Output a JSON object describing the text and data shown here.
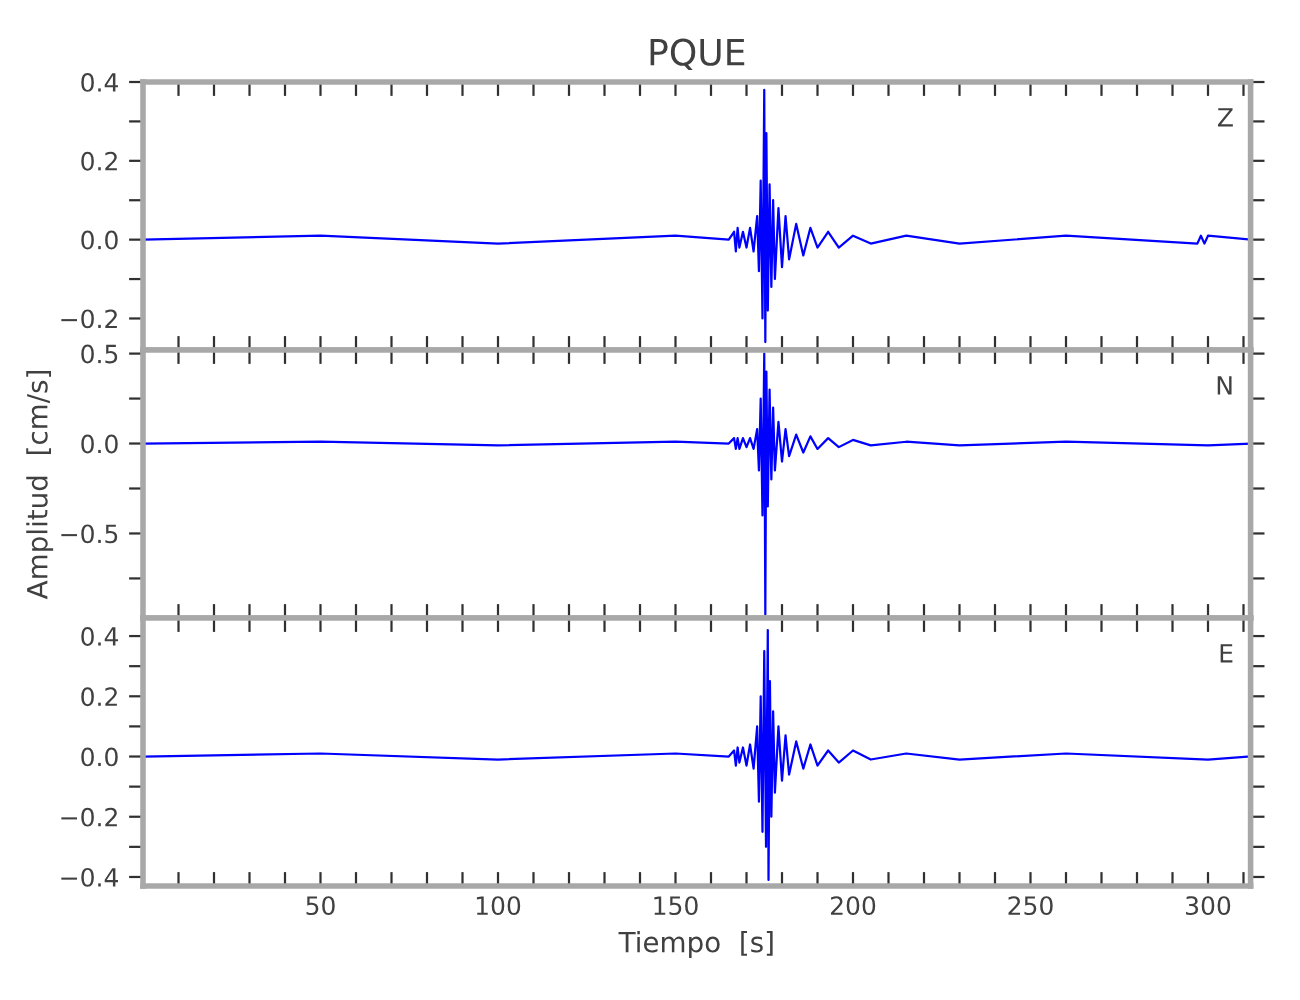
{
  "chart_data": [
    {
      "type": "line",
      "title": "PQUE",
      "annotations": [
        "Z"
      ],
      "tick_labels": "y",
      "xlim": [
        0,
        312
      ],
      "ylim": [
        -0.28,
        0.4
      ],
      "xticks": [
        {
          "value": 10,
          "label": null
        },
        {
          "value": 20,
          "label": null
        },
        {
          "value": 30,
          "label": null
        },
        {
          "value": 40,
          "label": null
        },
        50,
        {
          "value": 60,
          "label": null
        },
        {
          "value": 70,
          "label": null
        },
        {
          "value": 80,
          "label": null
        },
        {
          "value": 90,
          "label": null
        },
        100,
        {
          "value": 110,
          "label": null
        },
        {
          "value": 120,
          "label": null
        },
        {
          "value": 130,
          "label": null
        },
        {
          "value": 140,
          "label": null
        },
        150,
        {
          "value": 160,
          "label": null
        },
        {
          "value": 170,
          "label": null
        },
        {
          "value": 180,
          "label": null
        },
        {
          "value": 190,
          "label": null
        },
        200,
        {
          "value": 210,
          "label": null
        },
        {
          "value": 220,
          "label": null
        },
        {
          "value": 230,
          "label": null
        },
        {
          "value": 240,
          "label": null
        },
        250,
        {
          "value": 260,
          "label": null
        },
        {
          "value": 270,
          "label": null
        },
        {
          "value": 280,
          "label": null
        },
        {
          "value": 290,
          "label": null
        },
        300,
        {
          "value": 310,
          "label": null
        }
      ],
      "yticks": [
        {
          "value": -0.2,
          "label": "−0.2"
        },
        {
          "value": -0.1,
          "label": null
        },
        {
          "value": 0.0,
          "label": "0.0"
        },
        {
          "value": 0.1,
          "label": null
        },
        {
          "value": 0.2,
          "label": "0.2"
        },
        {
          "value": 0.3,
          "label": null
        },
        {
          "value": 0.4,
          "label": "0.4"
        }
      ],
      "series": [
        {
          "color": "#0000ff",
          "x": [
            0,
            50,
            100,
            150,
            165,
            166.5,
            167,
            167.5,
            168,
            169,
            170,
            171,
            172,
            173,
            173.5,
            174,
            174.5,
            175,
            175.3,
            175.6,
            176,
            176.5,
            177,
            177.5,
            178,
            179,
            180,
            181,
            182,
            184,
            186,
            188,
            190,
            193,
            196,
            200,
            205,
            215,
            230,
            260,
            297,
            298,
            299,
            300,
            312
          ],
          "values": [
            0,
            0.01,
            -0.01,
            0.01,
            0,
            0.02,
            -0.03,
            0.03,
            -0.02,
            0.02,
            -0.02,
            0.03,
            -0.03,
            0.06,
            -0.08,
            0.15,
            -0.2,
            0.38,
            -0.26,
            0.27,
            -0.18,
            0.14,
            -0.12,
            0.1,
            -0.1,
            0.08,
            -0.07,
            0.06,
            -0.05,
            0.04,
            -0.04,
            0.03,
            -0.02,
            0.02,
            -0.02,
            0.01,
            -0.01,
            0.01,
            -0.01,
            0.01,
            -0.01,
            0.01,
            -0.01,
            0.01,
            0
          ]
        }
      ]
    },
    {
      "type": "line",
      "ylabel": "Amplitud  [cm/s]",
      "annotations": [
        "N"
      ],
      "tick_labels": "y",
      "xlim": [
        0,
        312
      ],
      "ylim": [
        -0.97,
        0.52
      ],
      "xticks": [
        {
          "value": 10,
          "label": null
        },
        {
          "value": 20,
          "label": null
        },
        {
          "value": 30,
          "label": null
        },
        {
          "value": 40,
          "label": null
        },
        50,
        {
          "value": 60,
          "label": null
        },
        {
          "value": 70,
          "label": null
        },
        {
          "value": 80,
          "label": null
        },
        {
          "value": 90,
          "label": null
        },
        100,
        {
          "value": 110,
          "label": null
        },
        {
          "value": 120,
          "label": null
        },
        {
          "value": 130,
          "label": null
        },
        {
          "value": 140,
          "label": null
        },
        150,
        {
          "value": 160,
          "label": null
        },
        {
          "value": 170,
          "label": null
        },
        {
          "value": 180,
          "label": null
        },
        {
          "value": 190,
          "label": null
        },
        200,
        {
          "value": 210,
          "label": null
        },
        {
          "value": 220,
          "label": null
        },
        {
          "value": 230,
          "label": null
        },
        {
          "value": 240,
          "label": null
        },
        250,
        {
          "value": 260,
          "label": null
        },
        {
          "value": 270,
          "label": null
        },
        {
          "value": 280,
          "label": null
        },
        {
          "value": 290,
          "label": null
        },
        300,
        {
          "value": 310,
          "label": null
        }
      ],
      "yticks": [
        {
          "value": -0.75,
          "label": null
        },
        {
          "value": -0.5,
          "label": "−0.5"
        },
        {
          "value": -0.25,
          "label": null
        },
        {
          "value": 0.0,
          "label": "0.0"
        },
        {
          "value": 0.25,
          "label": null
        },
        {
          "value": 0.5,
          "label": "0.5"
        }
      ],
      "series": [
        {
          "color": "#0000ff",
          "x": [
            0,
            50,
            100,
            150,
            165,
            166.5,
            167,
            167.5,
            168,
            169,
            170,
            171,
            172,
            173,
            173.5,
            174,
            174.5,
            175,
            175.3,
            175.6,
            176,
            176.5,
            177,
            177.5,
            178,
            179,
            180,
            181,
            182,
            184,
            186,
            188,
            190,
            193,
            196,
            200,
            205,
            215,
            230,
            260,
            300,
            312
          ],
          "values": [
            0,
            0.01,
            -0.01,
            0.01,
            0,
            0.03,
            -0.03,
            0.03,
            -0.03,
            0.03,
            -0.02,
            0.03,
            -0.03,
            0.08,
            -0.15,
            0.25,
            -0.4,
            0.5,
            -0.95,
            0.4,
            -0.35,
            0.3,
            -0.2,
            0.2,
            -0.15,
            0.12,
            -0.1,
            0.08,
            -0.07,
            0.05,
            -0.05,
            0.04,
            -0.03,
            0.03,
            -0.02,
            0.02,
            -0.01,
            0.01,
            -0.01,
            0.01,
            -0.01,
            0
          ]
        }
      ]
    },
    {
      "type": "line",
      "xlabel": "Tiempo  [s]",
      "annotations": [
        "E"
      ],
      "xlim": [
        0,
        312
      ],
      "ylim": [
        -0.43,
        0.46
      ],
      "xticks": [
        {
          "value": 10,
          "label": null
        },
        {
          "value": 20,
          "label": null
        },
        {
          "value": 30,
          "label": null
        },
        {
          "value": 40,
          "label": null
        },
        50,
        {
          "value": 60,
          "label": null
        },
        {
          "value": 70,
          "label": null
        },
        {
          "value": 80,
          "label": null
        },
        {
          "value": 90,
          "label": null
        },
        100,
        {
          "value": 110,
          "label": null
        },
        {
          "value": 120,
          "label": null
        },
        {
          "value": 130,
          "label": null
        },
        {
          "value": 140,
          "label": null
        },
        150,
        {
          "value": 160,
          "label": null
        },
        {
          "value": 170,
          "label": null
        },
        {
          "value": 180,
          "label": null
        },
        {
          "value": 190,
          "label": null
        },
        200,
        {
          "value": 210,
          "label": null
        },
        {
          "value": 220,
          "label": null
        },
        {
          "value": 230,
          "label": null
        },
        {
          "value": 240,
          "label": null
        },
        250,
        {
          "value": 260,
          "label": null
        },
        {
          "value": 270,
          "label": null
        },
        {
          "value": 280,
          "label": null
        },
        {
          "value": 290,
          "label": null
        },
        300,
        {
          "value": 310,
          "label": null
        }
      ],
      "yticks": [
        {
          "value": -0.4,
          "label": "−0.4"
        },
        {
          "value": -0.3,
          "label": null
        },
        {
          "value": -0.2,
          "label": "−0.2"
        },
        {
          "value": -0.1,
          "label": null
        },
        {
          "value": 0.0,
          "label": "0.0"
        },
        {
          "value": 0.1,
          "label": null
        },
        {
          "value": 0.2,
          "label": "0.2"
        },
        {
          "value": 0.3,
          "label": null
        },
        {
          "value": 0.4,
          "label": "0.4"
        }
      ],
      "series": [
        {
          "color": "#0000ff",
          "x": [
            0,
            50,
            100,
            150,
            165,
            166.5,
            167,
            167.5,
            168,
            169,
            170,
            171,
            172,
            173,
            173.5,
            174,
            174.5,
            175,
            175.5,
            176,
            176.2,
            176.6,
            177,
            177.5,
            178,
            179,
            180,
            181,
            182,
            184,
            186,
            188,
            190,
            193,
            196,
            200,
            205,
            215,
            230,
            260,
            300,
            312
          ],
          "values": [
            0,
            0.01,
            -0.01,
            0.01,
            0,
            0.02,
            -0.03,
            0.03,
            -0.02,
            0.03,
            -0.03,
            0.04,
            -0.04,
            0.1,
            -0.15,
            0.2,
            -0.25,
            0.35,
            -0.3,
            0.42,
            -0.41,
            0.25,
            -0.2,
            0.15,
            -0.12,
            0.1,
            -0.08,
            0.07,
            -0.06,
            0.05,
            -0.04,
            0.04,
            -0.03,
            0.02,
            -0.02,
            0.02,
            -0.01,
            0.01,
            -0.01,
            0.01,
            -0.01,
            0
          ]
        }
      ]
    }
  ]
}
